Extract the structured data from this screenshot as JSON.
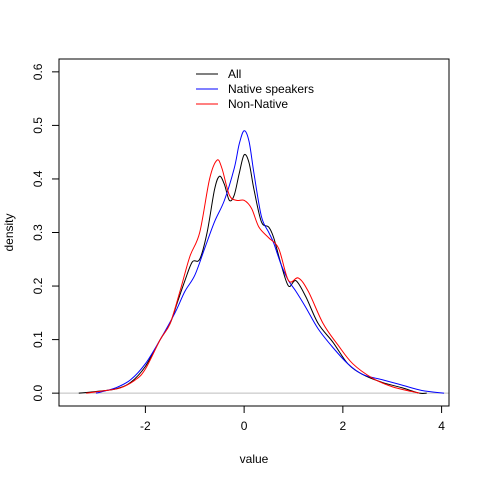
{
  "chart_data": {
    "type": "line",
    "title": "",
    "xlabel": "value",
    "ylabel": "density",
    "xlim": [
      -3.75,
      4.15
    ],
    "ylim": [
      -0.024,
      0.624
    ],
    "xticks": [
      -2,
      0,
      2,
      4
    ],
    "yticks": [
      0.0,
      0.1,
      0.2,
      0.3,
      0.4,
      0.5,
      0.6
    ],
    "xtick_labels": [
      "-2",
      "0",
      "2",
      "4"
    ],
    "ytick_labels": [
      "0.0",
      "0.1",
      "0.2",
      "0.3",
      "0.4",
      "0.5",
      "0.6"
    ],
    "grid": false,
    "baseline": {
      "y": 0,
      "color": "#bebebe"
    },
    "legend": {
      "position": "top-center"
    },
    "series": [
      {
        "name": "All",
        "color": "#000000",
        "x": [
          -3.35,
          -3.0,
          -2.6,
          -2.3,
          -2.0,
          -1.7,
          -1.5,
          -1.35,
          -1.2,
          -1.05,
          -0.9,
          -0.75,
          -0.6,
          -0.5,
          -0.4,
          -0.3,
          -0.2,
          -0.1,
          0.0,
          0.1,
          0.2,
          0.35,
          0.5,
          0.6,
          0.75,
          0.9,
          1.05,
          1.25,
          1.5,
          1.8,
          2.1,
          2.4,
          2.8,
          3.2,
          3.55,
          3.7
        ],
        "y": [
          0.0,
          0.003,
          0.008,
          0.02,
          0.05,
          0.1,
          0.13,
          0.17,
          0.21,
          0.245,
          0.25,
          0.3,
          0.38,
          0.405,
          0.39,
          0.36,
          0.37,
          0.41,
          0.445,
          0.43,
          0.38,
          0.32,
          0.31,
          0.29,
          0.24,
          0.2,
          0.21,
          0.18,
          0.13,
          0.095,
          0.055,
          0.035,
          0.02,
          0.01,
          0.0,
          0.0
        ]
      },
      {
        "name": "Native speakers",
        "color": "#0000ff",
        "x": [
          -3.0,
          -2.6,
          -2.3,
          -2.0,
          -1.7,
          -1.4,
          -1.2,
          -1.0,
          -0.8,
          -0.6,
          -0.4,
          -0.2,
          -0.1,
          0.0,
          0.1,
          0.2,
          0.35,
          0.5,
          0.6,
          0.75,
          0.9,
          1.05,
          1.25,
          1.5,
          1.8,
          2.1,
          2.4,
          2.8,
          3.2,
          3.6,
          4.05
        ],
        "y": [
          0.0,
          0.01,
          0.025,
          0.055,
          0.1,
          0.15,
          0.19,
          0.22,
          0.27,
          0.32,
          0.36,
          0.42,
          0.465,
          0.49,
          0.47,
          0.41,
          0.33,
          0.3,
          0.28,
          0.24,
          0.21,
          0.19,
          0.16,
          0.12,
          0.085,
          0.055,
          0.035,
          0.025,
          0.015,
          0.005,
          0.0
        ]
      },
      {
        "name": "Non-Native",
        "color": "#ff0000",
        "x": [
          -3.2,
          -2.8,
          -2.5,
          -2.2,
          -2.0,
          -1.7,
          -1.5,
          -1.3,
          -1.1,
          -0.9,
          -0.7,
          -0.55,
          -0.45,
          -0.3,
          -0.15,
          0.0,
          0.15,
          0.3,
          0.5,
          0.7,
          0.9,
          1.1,
          1.3,
          1.6,
          1.9,
          2.2,
          2.6,
          3.0,
          3.4,
          3.55
        ],
        "y": [
          0.0,
          0.005,
          0.01,
          0.025,
          0.045,
          0.1,
          0.13,
          0.19,
          0.255,
          0.3,
          0.4,
          0.435,
          0.42,
          0.37,
          0.36,
          0.36,
          0.345,
          0.31,
          0.29,
          0.27,
          0.21,
          0.215,
          0.19,
          0.13,
          0.09,
          0.055,
          0.028,
          0.012,
          0.003,
          0.0
        ]
      }
    ]
  }
}
